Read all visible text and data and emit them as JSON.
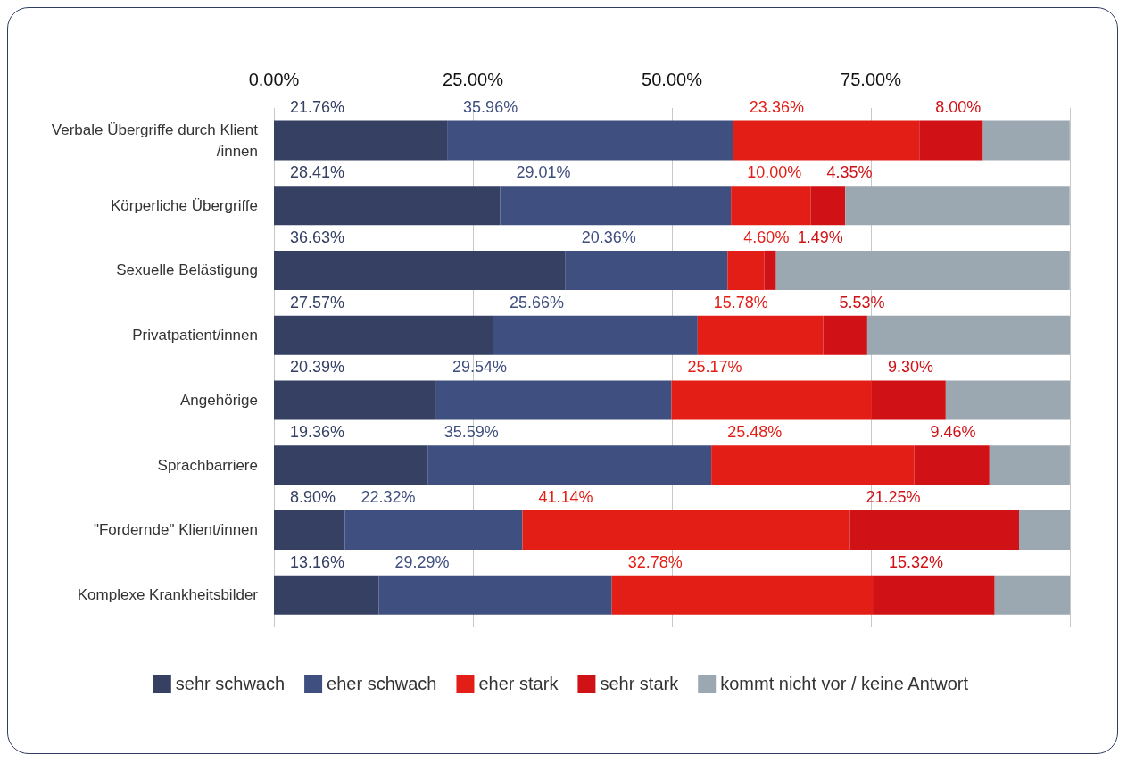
{
  "chart_data": {
    "type": "bar",
    "orientation": "horizontal",
    "stacked": true,
    "categories": [
      "Verbale Übergriffe durch Klient/innen",
      "Körperliche Übergriffe",
      "Sexuelle Belästigung",
      "Privatpatient/innen",
      "Angehörige",
      "Sprachbarriere",
      "\"Fordernde\" Klient/innen",
      "Komplexe Krankheitsbilder"
    ],
    "series": [
      {
        "name": "sehr schwach",
        "color": "#354063",
        "values": [
          21.76,
          28.41,
          36.63,
          27.57,
          20.39,
          19.36,
          8.9,
          13.16
        ],
        "value_labels": [
          "21.76%",
          "28.41%",
          "36.63%",
          "27.57%",
          "20.39%",
          "19.36%",
          "8.90%",
          "13.16%"
        ]
      },
      {
        "name": "eher schwach",
        "color": "#3f4f7f",
        "values": [
          35.96,
          29.01,
          20.36,
          25.66,
          29.54,
          35.59,
          22.32,
          29.29
        ],
        "value_labels": [
          "35.96%",
          "29.01%",
          "20.36%",
          "25.66%",
          "29.54%",
          "35.59%",
          "22.32%",
          "29.29%"
        ]
      },
      {
        "name": "eher stark",
        "color": "#e31e16",
        "values": [
          23.36,
          10.0,
          4.6,
          15.78,
          25.17,
          25.48,
          41.14,
          32.78
        ],
        "value_labels": [
          "23.36%",
          "10.00%",
          "4.60%",
          "15.78%",
          "25.17%",
          "25.48%",
          "41.14%",
          "32.78%"
        ]
      },
      {
        "name": "sehr stark",
        "color": "#d01116",
        "values": [
          8.0,
          4.35,
          1.49,
          5.53,
          9.3,
          9.46,
          21.25,
          15.32
        ],
        "value_labels": [
          "8.00%",
          "4.35%",
          "1.49%",
          "5.53%",
          "9.30%",
          "9.46%",
          "21.25%",
          "15.32%"
        ]
      },
      {
        "name": "kommt nicht vor / keine Antwort",
        "color": "#9ba8b1",
        "values": [
          10.9,
          28.2,
          36.9,
          25.5,
          15.6,
          10.1,
          6.4,
          9.5
        ]
      }
    ],
    "xlim": [
      0,
      100
    ],
    "xticks": [
      {
        "value": 0,
        "label": "0.00%"
      },
      {
        "value": 25,
        "label": "25.00%"
      },
      {
        "value": 50,
        "label": "50.00%"
      },
      {
        "value": 75,
        "label": "75.00%"
      },
      {
        "value": 100,
        "label": null
      }
    ],
    "grid": "x",
    "legend": "bottom"
  }
}
